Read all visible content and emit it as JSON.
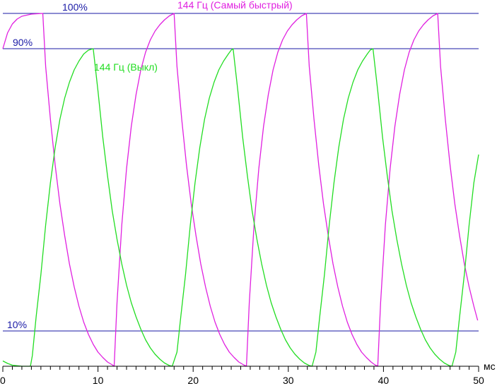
{
  "chart_data": {
    "type": "line",
    "title": "",
    "xlabel": "мс",
    "ylabel": "",
    "xlim": [
      0,
      50
    ],
    "ylim": [
      0,
      100
    ],
    "grid": false,
    "legend": "inline labels near curves",
    "x_ticks": [
      0,
      10,
      20,
      30,
      40,
      50
    ],
    "x_tick_labels": [
      "0",
      "10",
      "20",
      "30",
      "40",
      "50"
    ],
    "reference_lines": [
      {
        "y": 100,
        "label": "100%"
      },
      {
        "y": 90,
        "label": "90%"
      },
      {
        "y": 10,
        "label": "10%"
      }
    ],
    "series": [
      {
        "name": "144 Гц (Самый быстрый)",
        "color": "#e020e0",
        "points": [
          [
            0.0,
            90.0
          ],
          [
            0.5,
            94.5
          ],
          [
            1.0,
            97.0
          ],
          [
            1.5,
            98.4
          ],
          [
            2.0,
            99.2
          ],
          [
            3.0,
            99.8
          ],
          [
            4.2,
            100.0
          ],
          [
            4.5,
            85.0
          ],
          [
            5.0,
            70.0
          ],
          [
            5.5,
            57.0
          ],
          [
            6.0,
            46.0
          ],
          [
            6.5,
            37.0
          ],
          [
            7.0,
            29.0
          ],
          [
            7.5,
            22.5
          ],
          [
            8.0,
            17.0
          ],
          [
            8.5,
            12.5
          ],
          [
            9.0,
            9.0
          ],
          [
            9.5,
            6.2
          ],
          [
            10.0,
            4.0
          ],
          [
            10.5,
            2.5
          ],
          [
            11.0,
            1.2
          ],
          [
            11.5,
            0.4
          ],
          [
            11.7,
            0.0
          ],
          [
            12.0,
            18.0
          ],
          [
            12.5,
            40.0
          ],
          [
            13.0,
            56.0
          ],
          [
            13.5,
            68.0
          ],
          [
            14.0,
            77.0
          ],
          [
            14.5,
            84.0
          ],
          [
            15.0,
            89.0
          ],
          [
            15.5,
            92.5
          ],
          [
            16.0,
            95.0
          ],
          [
            16.5,
            96.8
          ],
          [
            17.0,
            98.2
          ],
          [
            17.5,
            99.3
          ],
          [
            18.0,
            100.0
          ],
          [
            18.3,
            85.0
          ],
          [
            18.8,
            70.0
          ],
          [
            19.3,
            57.0
          ],
          [
            19.8,
            46.0
          ],
          [
            20.3,
            37.0
          ],
          [
            20.8,
            29.0
          ],
          [
            21.3,
            22.5
          ],
          [
            21.8,
            17.0
          ],
          [
            22.3,
            12.5
          ],
          [
            22.8,
            9.0
          ],
          [
            23.3,
            6.2
          ],
          [
            23.8,
            4.0
          ],
          [
            24.3,
            2.5
          ],
          [
            24.8,
            1.2
          ],
          [
            25.3,
            0.4
          ],
          [
            25.6,
            0.0
          ],
          [
            25.9,
            18.0
          ],
          [
            26.4,
            40.0
          ],
          [
            26.9,
            56.0
          ],
          [
            27.4,
            68.0
          ],
          [
            27.9,
            77.0
          ],
          [
            28.4,
            84.0
          ],
          [
            28.9,
            89.0
          ],
          [
            29.4,
            92.5
          ],
          [
            29.9,
            95.0
          ],
          [
            30.4,
            96.8
          ],
          [
            30.9,
            98.2
          ],
          [
            31.4,
            99.3
          ],
          [
            31.9,
            100.0
          ],
          [
            32.2,
            85.0
          ],
          [
            32.7,
            70.0
          ],
          [
            33.2,
            57.0
          ],
          [
            33.7,
            46.0
          ],
          [
            34.2,
            37.0
          ],
          [
            34.7,
            29.0
          ],
          [
            35.2,
            22.5
          ],
          [
            35.7,
            17.0
          ],
          [
            36.2,
            12.5
          ],
          [
            36.7,
            9.0
          ],
          [
            37.2,
            6.2
          ],
          [
            37.7,
            4.0
          ],
          [
            38.2,
            2.5
          ],
          [
            38.7,
            1.2
          ],
          [
            39.1,
            0.4
          ],
          [
            39.4,
            0.0
          ],
          [
            39.7,
            18.0
          ],
          [
            40.2,
            40.0
          ],
          [
            40.7,
            56.0
          ],
          [
            41.2,
            68.0
          ],
          [
            41.7,
            77.0
          ],
          [
            42.2,
            84.0
          ],
          [
            42.7,
            89.0
          ],
          [
            43.2,
            92.5
          ],
          [
            43.7,
            95.0
          ],
          [
            44.2,
            96.8
          ],
          [
            44.7,
            98.2
          ],
          [
            45.2,
            99.3
          ],
          [
            45.7,
            100.0
          ],
          [
            46.0,
            85.0
          ],
          [
            46.5,
            70.0
          ],
          [
            47.0,
            57.0
          ],
          [
            47.5,
            46.0
          ],
          [
            48.0,
            37.0
          ],
          [
            48.5,
            29.0
          ],
          [
            49.0,
            22.5
          ],
          [
            49.5,
            17.0
          ],
          [
            49.9,
            13.0
          ]
        ]
      },
      {
        "name": "144 Гц (Выкл)",
        "color": "#22dd22",
        "points": [
          [
            0.0,
            1.5
          ],
          [
            0.5,
            0.8
          ],
          [
            1.0,
            0.3
          ],
          [
            2.0,
            0.0
          ],
          [
            2.9,
            0.0
          ],
          [
            3.1,
            3.0
          ],
          [
            3.5,
            14.0
          ],
          [
            4.0,
            26.0
          ],
          [
            4.5,
            40.0
          ],
          [
            5.0,
            52.0
          ],
          [
            5.5,
            62.0
          ],
          [
            6.0,
            70.0
          ],
          [
            6.5,
            76.0
          ],
          [
            7.0,
            80.5
          ],
          [
            7.5,
            84.0
          ],
          [
            8.0,
            86.5
          ],
          [
            8.5,
            88.5
          ],
          [
            9.0,
            89.6
          ],
          [
            9.5,
            90.0
          ],
          [
            10.0,
            78.0
          ],
          [
            10.5,
            65.0
          ],
          [
            11.0,
            54.0
          ],
          [
            11.5,
            44.0
          ],
          [
            12.0,
            36.0
          ],
          [
            12.5,
            29.0
          ],
          [
            13.0,
            23.0
          ],
          [
            13.5,
            18.0
          ],
          [
            14.0,
            14.0
          ],
          [
            14.5,
            10.5
          ],
          [
            15.0,
            7.5
          ],
          [
            15.5,
            5.2
          ],
          [
            16.0,
            3.4
          ],
          [
            16.5,
            2.0
          ],
          [
            17.0,
            0.9
          ],
          [
            17.5,
            0.2
          ],
          [
            17.8,
            0.0
          ],
          [
            18.3,
            4.0
          ],
          [
            18.7,
            14.0
          ],
          [
            19.2,
            26.0
          ],
          [
            19.7,
            40.0
          ],
          [
            20.2,
            52.0
          ],
          [
            20.7,
            62.0
          ],
          [
            21.2,
            70.0
          ],
          [
            21.7,
            76.0
          ],
          [
            22.2,
            80.5
          ],
          [
            22.7,
            84.0
          ],
          [
            23.2,
            86.5
          ],
          [
            23.7,
            88.5
          ],
          [
            24.0,
            89.6
          ],
          [
            24.2,
            90.0
          ],
          [
            24.7,
            78.0
          ],
          [
            25.2,
            65.0
          ],
          [
            25.7,
            54.0
          ],
          [
            26.2,
            44.0
          ],
          [
            26.7,
            36.0
          ],
          [
            27.2,
            29.0
          ],
          [
            27.7,
            23.0
          ],
          [
            28.2,
            18.0
          ],
          [
            28.7,
            14.0
          ],
          [
            29.2,
            10.5
          ],
          [
            29.7,
            7.5
          ],
          [
            30.2,
            5.2
          ],
          [
            30.7,
            3.4
          ],
          [
            31.2,
            2.0
          ],
          [
            31.7,
            0.9
          ],
          [
            32.2,
            0.2
          ],
          [
            32.5,
            0.0
          ],
          [
            32.9,
            4.0
          ],
          [
            33.3,
            14.0
          ],
          [
            33.8,
            26.0
          ],
          [
            34.3,
            40.0
          ],
          [
            34.8,
            52.0
          ],
          [
            35.3,
            62.0
          ],
          [
            35.8,
            70.0
          ],
          [
            36.3,
            76.0
          ],
          [
            36.8,
            80.5
          ],
          [
            37.3,
            84.0
          ],
          [
            37.8,
            86.5
          ],
          [
            38.3,
            88.5
          ],
          [
            38.6,
            89.6
          ],
          [
            38.9,
            90.0
          ],
          [
            39.4,
            78.0
          ],
          [
            39.9,
            65.0
          ],
          [
            40.4,
            54.0
          ],
          [
            40.9,
            44.0
          ],
          [
            41.4,
            36.0
          ],
          [
            41.9,
            29.0
          ],
          [
            42.4,
            23.0
          ],
          [
            42.9,
            18.0
          ],
          [
            43.4,
            14.0
          ],
          [
            43.9,
            10.5
          ],
          [
            44.4,
            7.5
          ],
          [
            44.9,
            5.2
          ],
          [
            45.4,
            3.4
          ],
          [
            45.9,
            2.0
          ],
          [
            46.4,
            0.9
          ],
          [
            46.9,
            0.2
          ],
          [
            47.2,
            0.0
          ],
          [
            47.6,
            4.0
          ],
          [
            48.0,
            14.0
          ],
          [
            48.5,
            26.0
          ],
          [
            49.0,
            40.0
          ],
          [
            49.5,
            52.0
          ],
          [
            50.0,
            60.0
          ]
        ]
      }
    ]
  }
}
